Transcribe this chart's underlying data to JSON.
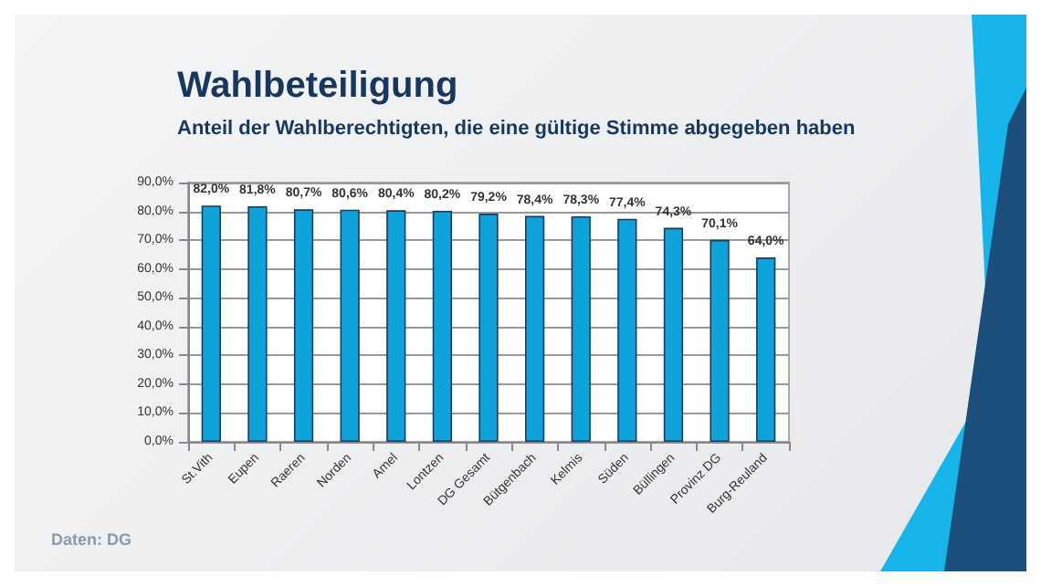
{
  "chart_data": {
    "type": "bar",
    "title": "Wahlbeteiligung",
    "subtitle": "Anteil der Wahlberechtigten, die eine gültige Stimme abgegeben haben",
    "categories": [
      "St.Vith",
      "Eupen",
      "Raeren",
      "Norden",
      "Amel",
      "Lontzen",
      "DG Gesamt",
      "Bütgenbach",
      "Kelmis",
      "Süden",
      "Büllingen",
      "Provinz DG",
      "Burg-Reuland"
    ],
    "values": [
      82.0,
      81.8,
      80.7,
      80.6,
      80.4,
      80.2,
      79.2,
      78.4,
      78.3,
      77.4,
      74.3,
      70.1,
      64.0
    ],
    "value_labels": [
      "82,0%",
      "81,8%",
      "80,7%",
      "80,6%",
      "80,4%",
      "80,2%",
      "79,2%",
      "78,4%",
      "78,3%",
      "77,4%",
      "74,3%",
      "70,1%",
      "64,0%"
    ],
    "color": "#0fa3dc",
    "ylim": [
      0,
      90
    ],
    "yticks": [
      {
        "value": 0,
        "label": "0,0%"
      },
      {
        "value": 10,
        "label": "10,0%"
      },
      {
        "value": 20,
        "label": "20,0%"
      },
      {
        "value": 30,
        "label": "30,0%"
      },
      {
        "value": 40,
        "label": "40,0%"
      },
      {
        "value": 50,
        "label": "50,0%"
      },
      {
        "value": 60,
        "label": "60,0%"
      },
      {
        "value": 70,
        "label": "70,0%"
      },
      {
        "value": 80,
        "label": "80,0%"
      },
      {
        "value": 90,
        "label": "90,0%"
      }
    ],
    "grid": "y",
    "annotations": [
      "Daten: DG"
    ]
  }
}
